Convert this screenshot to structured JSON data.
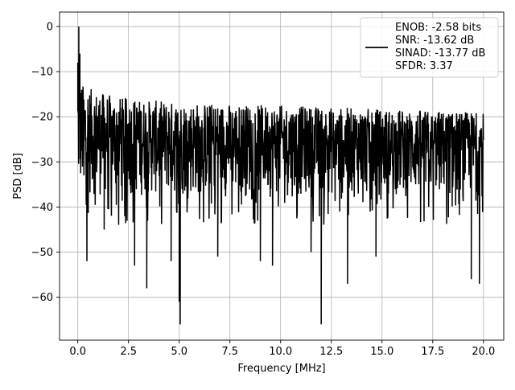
{
  "chart_data": {
    "type": "line",
    "title": "",
    "xlabel": "Frequency [MHz]",
    "ylabel": "PSD [dB]",
    "xlim": [
      -0.9,
      21.0
    ],
    "ylim": [
      -69.5,
      3.2
    ],
    "xticks": [
      0.0,
      2.5,
      5.0,
      7.5,
      10.0,
      12.5,
      15.0,
      17.5,
      20.0
    ],
    "xtick_labels": [
      "0.0",
      "2.5",
      "5.0",
      "7.5",
      "10.0",
      "12.5",
      "15.0",
      "17.5",
      "20.0"
    ],
    "yticks": [
      0,
      -10,
      -20,
      -30,
      -40,
      -50,
      -60
    ],
    "ytick_labels": [
      "0",
      "−10",
      "−20",
      "−30",
      "−40",
      "−50",
      "−60"
    ],
    "grid": true,
    "legend": {
      "placement": "top-right",
      "entries": [
        "ENOB: -2.58 bits",
        "SNR: -13.62 dB",
        "SINAD: -13.77 dB",
        "SFDR: 3.37"
      ]
    },
    "series": [
      {
        "color": "#000000",
        "x_range": [
          0.0,
          20.0
        ],
        "peak": {
          "x": 0.05,
          "y": 0.0
        },
        "noise_floor_band": [
          -38,
          -16
        ],
        "x": [
          0.0,
          0.05,
          0.1,
          0.2,
          0.3,
          0.45,
          1.3,
          2.8,
          3.4,
          4.6,
          5.0,
          5.05,
          6.9,
          9.0,
          9.6,
          11.5,
          12.0,
          13.3,
          14.7,
          19.4,
          19.8
        ],
        "values": [
          -8,
          0,
          -6,
          -14,
          -33,
          -52,
          -45,
          -53,
          -58,
          -52,
          -61,
          -66,
          -51,
          -52,
          -53,
          -50,
          -66,
          -57,
          -51,
          -56,
          -57
        ]
      }
    ]
  }
}
